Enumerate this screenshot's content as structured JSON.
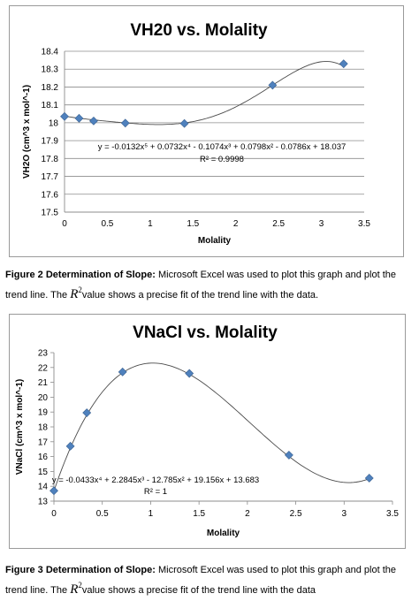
{
  "chart_data": [
    {
      "type": "scatter",
      "title": "VH20 vs. Molality",
      "xlabel": "Molality",
      "ylabel": "VH2O (cm^3 x mol^-1)",
      "xlim": [
        0,
        3.5
      ],
      "ylim": [
        17.5,
        18.4
      ],
      "xticks": [
        "0",
        "0.5",
        "1",
        "1.5",
        "2",
        "2.5",
        "3",
        "3.5"
      ],
      "yticks": [
        "17.5",
        "17.6",
        "17.7",
        "17.8",
        "17.9",
        "18",
        "18.1",
        "18.2",
        "18.3",
        "18.4"
      ],
      "grid": true,
      "legend": "none",
      "marker_color": "#4f81bd",
      "points": [
        {
          "x": 0,
          "y": 18.035
        },
        {
          "x": 0.17,
          "y": 18.025
        },
        {
          "x": 0.34,
          "y": 18.01
        },
        {
          "x": 0.71,
          "y": 17.998
        },
        {
          "x": 1.4,
          "y": 17.996
        },
        {
          "x": 2.43,
          "y": 18.21
        },
        {
          "x": 3.26,
          "y": 18.33
        }
      ],
      "trendline": {
        "type": "polynomial",
        "coefficients": [
          -0.0132,
          0.0732,
          -0.1074,
          0.0798,
          -0.0786,
          18.037
        ],
        "equation": "y = -0.0132x⁵ + 0.0732x⁴ - 0.1074x³ + 0.0798x² - 0.0786x + 18.037",
        "r_squared": "R² = 0.9998"
      }
    },
    {
      "type": "scatter",
      "title": "VNaCl vs. Molality",
      "xlabel": "Molality",
      "ylabel": "VNaCl (cm^3 x mol^-1)",
      "xlim": [
        0,
        3.5
      ],
      "ylim": [
        13,
        23
      ],
      "xticks": [
        "0",
        "0.5",
        "1",
        "1.5",
        "2",
        "2.5",
        "3",
        "3.5"
      ],
      "yticks": [
        "13",
        "14",
        "15",
        "16",
        "17",
        "18",
        "19",
        "20",
        "21",
        "22",
        "23"
      ],
      "grid": false,
      "legend": "none",
      "marker_color": "#4f81bd",
      "points": [
        {
          "x": 0,
          "y": 13.7
        },
        {
          "x": 0.17,
          "y": 16.7
        },
        {
          "x": 0.34,
          "y": 18.95
        },
        {
          "x": 0.71,
          "y": 21.7
        },
        {
          "x": 1.4,
          "y": 21.6
        },
        {
          "x": 2.43,
          "y": 16.1
        },
        {
          "x": 3.26,
          "y": 14.55
        }
      ],
      "trendline": {
        "type": "polynomial",
        "coefficients": [
          -0.0433,
          2.2845,
          -12.785,
          19.156,
          13.683
        ],
        "equation": "y = -0.0433x⁴ + 2.2845x³ - 12.785x² + 19.156x + 13.683",
        "r_squared": "R² = 1"
      }
    }
  ],
  "captions": [
    {
      "label": "Figure 2 Determination of Slope:",
      "text_before": " Microsoft Excel was used to plot this graph and plot the trend line.  The ",
      "symbol": "R",
      "symbol_sup": "2",
      "text_after": "value shows a precise fit of the trend line with the data."
    },
    {
      "label": "Figure 3 Determination of Slope:",
      "text_before": " Microsoft Excel was used to plot this graph and plot the trend line.  The ",
      "symbol": "R",
      "symbol_sup": "2",
      "text_after": "value shows a precise fit of the trend line with the data"
    }
  ]
}
